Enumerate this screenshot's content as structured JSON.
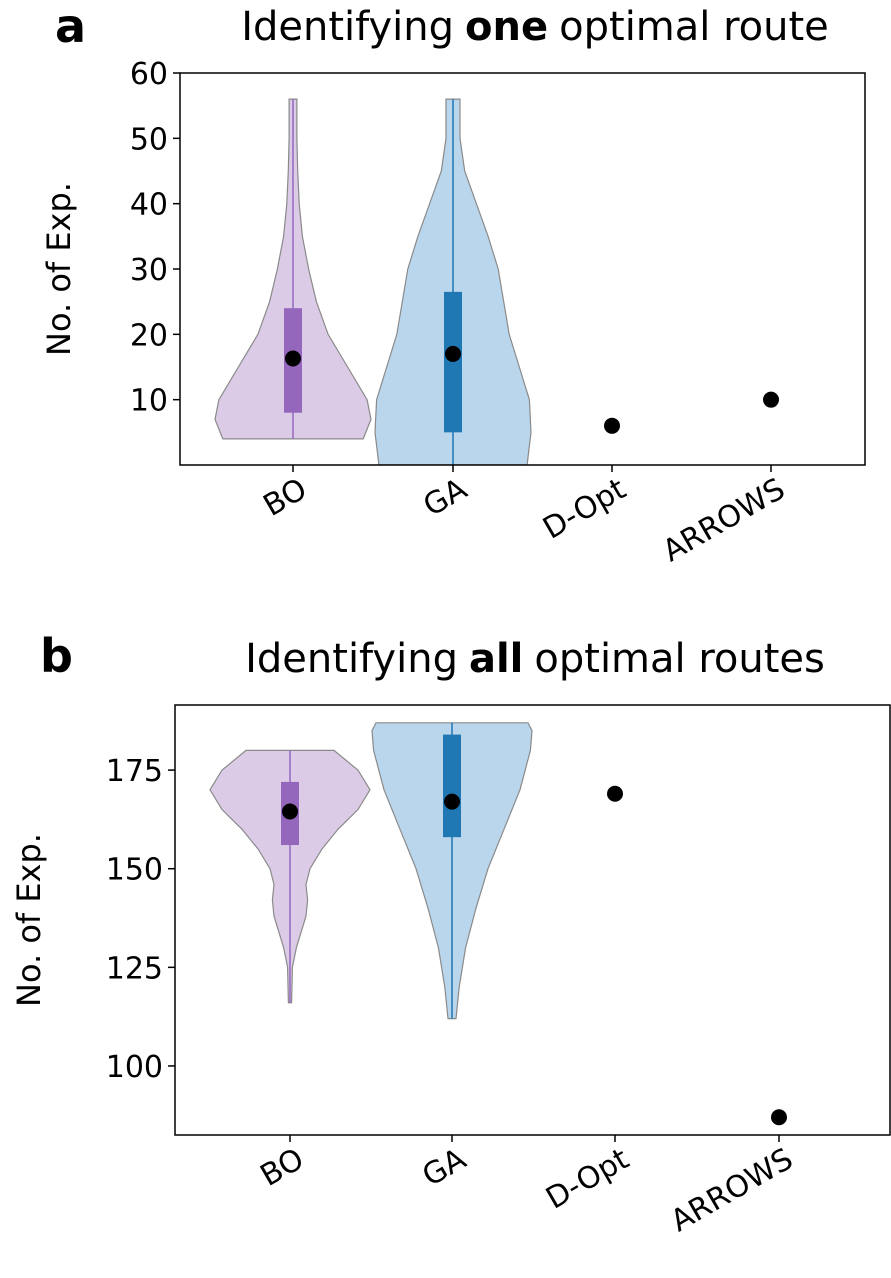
{
  "chart_data": [
    {
      "type": "violin",
      "panel": "a",
      "title": {
        "before": "Identifying",
        "bold": "one",
        "after": "optimal route"
      },
      "ylabel": "No. of Exp.",
      "categories": [
        "BO",
        "GA",
        "D-Opt",
        "ARROWS"
      ],
      "ylim": [
        0,
        60
      ],
      "yticks": [
        10,
        20,
        30,
        40,
        50,
        60
      ],
      "items": [
        {
          "kind": "violin",
          "fill": "#dccbe6",
          "box_color": "#9467bd",
          "min": 4,
          "max": 56,
          "q1": 8,
          "q3": 24,
          "mean": 16.3,
          "profile_y": [
            4,
            7,
            10,
            14,
            20,
            25,
            30,
            35,
            40,
            45,
            50,
            56
          ],
          "profile_width": [
            0.9,
            1.0,
            0.95,
            0.75,
            0.45,
            0.3,
            0.2,
            0.12,
            0.08,
            0.06,
            0.05,
            0.05
          ]
        },
        {
          "kind": "violin",
          "fill": "#bad6ec",
          "box_color": "#1f77b4",
          "min": 0,
          "max": 56,
          "q1": 5,
          "q3": 26.5,
          "mean": 17,
          "profile_y": [
            0,
            5,
            10,
            15,
            20,
            25,
            30,
            35,
            40,
            45,
            50,
            56
          ],
          "profile_width": [
            0.95,
            1.0,
            0.98,
            0.85,
            0.72,
            0.65,
            0.58,
            0.45,
            0.3,
            0.15,
            0.09,
            0.09
          ]
        },
        {
          "kind": "point",
          "value": 6
        },
        {
          "kind": "point",
          "value": 10
        }
      ]
    },
    {
      "type": "violin",
      "panel": "b",
      "title": {
        "before": "Identifying",
        "bold": "all",
        "after": "optimal routes"
      },
      "ylabel": "No. of Exp.",
      "categories": [
        "BO",
        "GA",
        "D-Opt",
        "ARROWS"
      ],
      "ylim": [
        82.5,
        191.5
      ],
      "yticks": [
        100,
        125,
        150,
        175
      ],
      "items": [
        {
          "kind": "violin",
          "fill": "#dccbe6",
          "box_color": "#9467bd",
          "min": 116,
          "max": 180,
          "q1": 156,
          "q3": 172,
          "mean": 164.5,
          "profile_y": [
            116,
            125,
            130,
            138,
            142,
            146,
            150,
            155,
            160,
            165,
            170,
            175,
            180
          ],
          "profile_width": [
            0.02,
            0.03,
            0.08,
            0.2,
            0.22,
            0.2,
            0.25,
            0.4,
            0.6,
            0.85,
            1.0,
            0.85,
            0.55
          ]
        },
        {
          "kind": "violin",
          "fill": "#bad6ec",
          "box_color": "#1f77b4",
          "min": 112,
          "max": 187,
          "q1": 158,
          "q3": 184,
          "mean": 167,
          "profile_y": [
            112,
            120,
            130,
            140,
            150,
            160,
            170,
            180,
            185,
            187
          ],
          "profile_width": [
            0.05,
            0.09,
            0.17,
            0.3,
            0.45,
            0.65,
            0.85,
            0.98,
            1.0,
            0.95
          ]
        },
        {
          "kind": "point",
          "value": 169
        },
        {
          "kind": "point",
          "value": 87
        }
      ]
    }
  ]
}
